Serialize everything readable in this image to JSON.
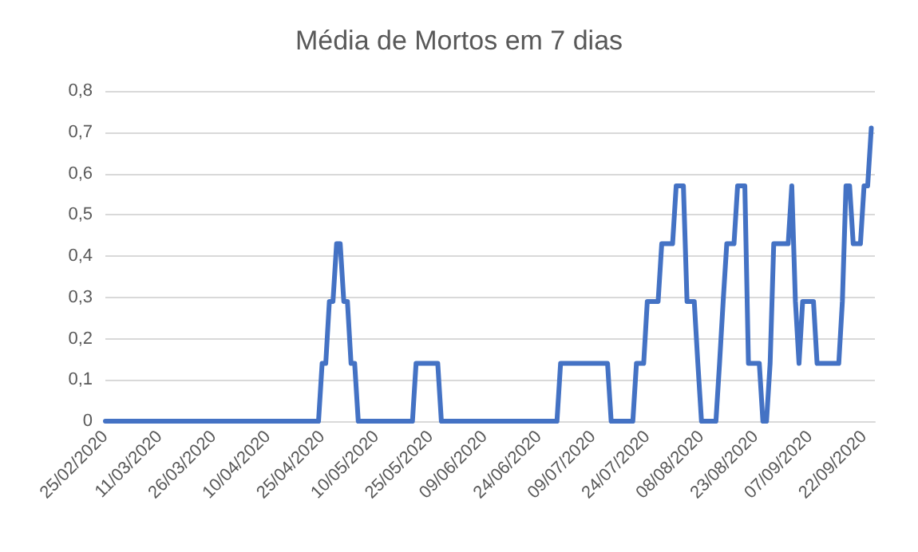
{
  "chart_data": {
    "type": "line",
    "title": "Média de Mortos em 7 dias",
    "x": [
      "2020-02-25",
      "2020-04-24",
      "2020-04-25",
      "2020-04-26",
      "2020-04-27",
      "2020-04-28",
      "2020-04-29",
      "2020-04-30",
      "2020-05-01",
      "2020-05-02",
      "2020-05-03",
      "2020-05-04",
      "2020-05-05",
      "2020-05-20",
      "2020-05-21",
      "2020-05-27",
      "2020-05-28",
      "2020-06-29",
      "2020-06-30",
      "2020-07-13",
      "2020-07-14",
      "2020-07-20",
      "2020-07-21",
      "2020-07-23",
      "2020-07-24",
      "2020-07-27",
      "2020-07-28",
      "2020-07-31",
      "2020-08-01",
      "2020-08-03",
      "2020-08-04",
      "2020-08-06",
      "2020-08-07",
      "2020-08-08",
      "2020-08-12",
      "2020-08-13",
      "2020-08-14",
      "2020-08-15",
      "2020-08-17",
      "2020-08-18",
      "2020-08-20",
      "2020-08-21",
      "2020-08-24",
      "2020-08-25",
      "2020-08-26",
      "2020-08-27",
      "2020-08-28",
      "2020-09-01",
      "2020-09-02",
      "2020-09-03",
      "2020-09-04",
      "2020-09-05",
      "2020-09-08",
      "2020-09-09",
      "2020-09-15",
      "2020-09-16",
      "2020-09-17",
      "2020-09-18",
      "2020-09-19",
      "2020-09-21",
      "2020-09-22",
      "2020-09-23",
      "2020-09-24"
    ],
    "series": [
      {
        "color": "#4472c4",
        "values": [
          0,
          0,
          0.14,
          0.14,
          0.29,
          0.29,
          0.43,
          0.43,
          0.29,
          0.29,
          0.14,
          0.14,
          0,
          0,
          0.14,
          0.14,
          0,
          0,
          0.14,
          0.14,
          0,
          0,
          0.14,
          0.14,
          0.29,
          0.29,
          0.43,
          0.43,
          0.57,
          0.57,
          0.29,
          0.29,
          0.14,
          0,
          0,
          0.14,
          0.29,
          0.43,
          0.43,
          0.57,
          0.57,
          0.14,
          0.14,
          0,
          0,
          0.14,
          0.43,
          0.43,
          0.57,
          0.29,
          0.14,
          0.29,
          0.29,
          0.14,
          0.14,
          0.29,
          0.57,
          0.57,
          0.43,
          0.43,
          0.57,
          0.57,
          0.71
        ]
      }
    ],
    "xlim": [
      "2020-02-25",
      "2020-09-25"
    ],
    "xticks": [
      {
        "value": "2020-02-25",
        "label": "25/02/2020"
      },
      {
        "value": "2020-03-11",
        "label": "11/03/2020"
      },
      {
        "value": "2020-03-26",
        "label": "26/03/2020"
      },
      {
        "value": "2020-04-10",
        "label": "10/04/2020"
      },
      {
        "value": "2020-04-25",
        "label": "25/04/2020"
      },
      {
        "value": "2020-05-10",
        "label": "10/05/2020"
      },
      {
        "value": "2020-05-25",
        "label": "25/05/2020"
      },
      {
        "value": "2020-06-09",
        "label": "09/06/2020"
      },
      {
        "value": "2020-06-24",
        "label": "24/06/2020"
      },
      {
        "value": "2020-07-09",
        "label": "09/07/2020"
      },
      {
        "value": "2020-07-24",
        "label": "24/07/2020"
      },
      {
        "value": "2020-08-08",
        "label": "08/08/2020"
      },
      {
        "value": "2020-08-23",
        "label": "23/08/2020"
      },
      {
        "value": "2020-09-07",
        "label": "07/09/2020"
      },
      {
        "value": "2020-09-22",
        "label": "22/09/2020"
      }
    ],
    "ylim": [
      0,
      0.8
    ],
    "yticks": [
      {
        "value": 0,
        "label": "0"
      },
      {
        "value": 0.1,
        "label": "0,1"
      },
      {
        "value": 0.2,
        "label": "0,2"
      },
      {
        "value": 0.3,
        "label": "0,3"
      },
      {
        "value": 0.4,
        "label": "0,4"
      },
      {
        "value": 0.5,
        "label": "0,5"
      },
      {
        "value": 0.6,
        "label": "0,6"
      },
      {
        "value": 0.7,
        "label": "0,7"
      },
      {
        "value": 0.8,
        "label": "0,8"
      }
    ],
    "grid": "y",
    "marker": "none",
    "line_style": "solid"
  }
}
